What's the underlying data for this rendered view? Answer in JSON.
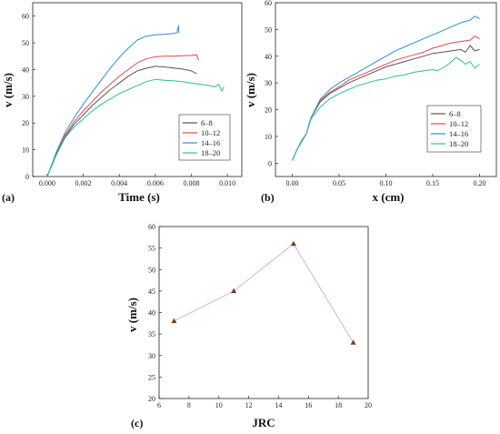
{
  "chart_data": [
    {
      "panel": "(a)",
      "type": "line",
      "xlabel": "Time (s)",
      "ylabel": "v (m/s)",
      "xlim": [
        -0.0008,
        0.0108
      ],
      "ylim": [
        0,
        65
      ],
      "xticks": [
        0.0,
        0.002,
        0.004,
        0.006,
        0.008,
        0.01
      ],
      "xtick_labels": [
        "0.000",
        "0.002",
        "0.004",
        "0.006",
        "0.008",
        "0.010"
      ],
      "yticks": [
        0,
        10,
        20,
        30,
        40,
        50,
        60
      ],
      "legend_position": "lower-right",
      "series": [
        {
          "name": "6–8",
          "color": "#555555",
          "x": [
            0,
            0.0005,
            0.001,
            0.0015,
            0.002,
            0.0025,
            0.003,
            0.0035,
            0.004,
            0.0045,
            0.005,
            0.0055,
            0.006,
            0.0065,
            0.007,
            0.0075,
            0.008,
            0.0083
          ],
          "y": [
            0,
            8,
            15,
            19.5,
            23,
            26.5,
            29.5,
            32.5,
            35,
            37.5,
            39.5,
            40.5,
            41.2,
            41,
            40.6,
            40.2,
            39.5,
            38.5
          ]
        },
        {
          "name": "10–12",
          "color": "#e8474b",
          "x": [
            0,
            0.0005,
            0.001,
            0.0015,
            0.002,
            0.0025,
            0.003,
            0.0035,
            0.004,
            0.0045,
            0.005,
            0.0055,
            0.006,
            0.0065,
            0.007,
            0.0075,
            0.008,
            0.0083,
            0.0084
          ],
          "y": [
            0,
            8.5,
            15.5,
            20.5,
            24.5,
            28,
            31.5,
            34.5,
            37.5,
            40,
            42.5,
            44,
            44.8,
            45,
            45,
            45.2,
            45.3,
            45.5,
            43.5
          ]
        },
        {
          "name": "14–16",
          "color": "#2b8fd6",
          "x": [
            0,
            0.0005,
            0.001,
            0.0015,
            0.002,
            0.0025,
            0.003,
            0.0035,
            0.004,
            0.0045,
            0.005,
            0.0055,
            0.006,
            0.0065,
            0.007,
            0.0072,
            0.0073,
            0.0073
          ],
          "y": [
            0,
            9,
            16.5,
            22,
            27,
            31.5,
            36,
            40.5,
            44.5,
            48,
            51,
            52.5,
            53,
            53.2,
            53.5,
            53.8,
            56.5,
            53.5
          ]
        },
        {
          "name": "18–20",
          "color": "#2ec08b",
          "x": [
            0,
            0.0005,
            0.001,
            0.0015,
            0.002,
            0.0025,
            0.003,
            0.0035,
            0.004,
            0.0045,
            0.005,
            0.0055,
            0.006,
            0.0065,
            0.007,
            0.0075,
            0.008,
            0.0085,
            0.009,
            0.0093,
            0.0095,
            0.0097,
            0.0098
          ],
          "y": [
            0,
            8,
            14.5,
            18.5,
            21.5,
            24.5,
            27,
            29,
            31,
            32.5,
            34,
            35.5,
            36.3,
            36,
            35.8,
            35.5,
            35,
            34.5,
            34,
            33.5,
            34.5,
            32,
            33.5
          ]
        }
      ]
    },
    {
      "panel": "(b)",
      "type": "line",
      "xlabel": "x (cm)",
      "ylabel": "v (m/s)",
      "xlim": [
        -0.018,
        0.218
      ],
      "ylim": [
        -5,
        60
      ],
      "xticks": [
        0.0,
        0.05,
        0.1,
        0.15,
        0.2
      ],
      "xtick_labels": [
        "0.00",
        "0.05",
        "0.10",
        "0.15",
        "0.20"
      ],
      "yticks": [
        0,
        10,
        20,
        30,
        40,
        50,
        60
      ],
      "legend_position": "lower-right",
      "series": [
        {
          "name": "6–8",
          "color": "#555555",
          "x": [
            0,
            0.005,
            0.01,
            0.015,
            0.02,
            0.03,
            0.04,
            0.05,
            0.06,
            0.07,
            0.08,
            0.09,
            0.1,
            0.11,
            0.12,
            0.13,
            0.14,
            0.15,
            0.16,
            0.17,
            0.18,
            0.185,
            0.19,
            0.195,
            0.2
          ],
          "y": [
            1,
            5,
            8,
            11,
            17,
            23,
            26,
            28,
            30,
            31.5,
            33,
            34.5,
            36,
            37,
            38,
            39,
            40,
            41,
            41.5,
            42,
            42.5,
            41.5,
            44,
            42,
            42.5
          ]
        },
        {
          "name": "10–12",
          "color": "#e8474b",
          "x": [
            0,
            0.005,
            0.01,
            0.015,
            0.02,
            0.03,
            0.04,
            0.05,
            0.06,
            0.07,
            0.08,
            0.09,
            0.1,
            0.11,
            0.12,
            0.13,
            0.14,
            0.15,
            0.16,
            0.17,
            0.18,
            0.19,
            0.195,
            0.2
          ],
          "y": [
            1,
            5,
            8,
            11,
            17,
            23.5,
            26.5,
            28.5,
            31,
            32.5,
            34,
            35.5,
            37,
            38.5,
            39.5,
            40.5,
            41.5,
            43,
            44,
            45,
            45.5,
            46,
            47.5,
            46.5
          ]
        },
        {
          "name": "14–16",
          "color": "#2b8fd6",
          "x": [
            0,
            0.005,
            0.01,
            0.015,
            0.02,
            0.03,
            0.04,
            0.05,
            0.06,
            0.07,
            0.08,
            0.09,
            0.1,
            0.11,
            0.12,
            0.13,
            0.14,
            0.15,
            0.16,
            0.17,
            0.18,
            0.19,
            0.195,
            0.2
          ],
          "y": [
            1,
            5,
            8.5,
            11,
            17,
            24,
            27.5,
            30,
            32,
            34,
            36,
            38,
            40,
            42,
            43.5,
            45,
            46.5,
            48,
            49.5,
            51,
            52.5,
            53.5,
            55,
            54
          ]
        },
        {
          "name": "18–20",
          "color": "#2ec08b",
          "x": [
            0,
            0.005,
            0.01,
            0.015,
            0.02,
            0.03,
            0.04,
            0.05,
            0.06,
            0.07,
            0.08,
            0.09,
            0.1,
            0.11,
            0.12,
            0.13,
            0.14,
            0.15,
            0.155,
            0.16,
            0.165,
            0.17,
            0.175,
            0.18,
            0.185,
            0.19,
            0.195,
            0.2
          ],
          "y": [
            1,
            5,
            8,
            11,
            16.5,
            21,
            24,
            26,
            27.5,
            29,
            30,
            31,
            31.5,
            32.5,
            33,
            34,
            34.5,
            35,
            34.5,
            35.5,
            36.5,
            38,
            39.5,
            38.5,
            37,
            38,
            35.5,
            37
          ]
        }
      ]
    },
    {
      "panel": "(c)",
      "type": "line",
      "xlabel": "JRC",
      "ylabel": "v (m/s)",
      "xlim": [
        6,
        20
      ],
      "ylim": [
        20,
        60
      ],
      "xticks": [
        6,
        8,
        10,
        12,
        14,
        16,
        18,
        20
      ],
      "yticks": [
        20,
        25,
        30,
        35,
        40,
        45,
        50,
        55,
        60
      ],
      "marker": "triangle",
      "line_color": "#c9a0cf",
      "marker_color": "#7a3b12",
      "series": [
        {
          "x": [
            7,
            11,
            15,
            19
          ],
          "y": [
            38,
            45,
            56,
            33
          ]
        }
      ]
    }
  ]
}
